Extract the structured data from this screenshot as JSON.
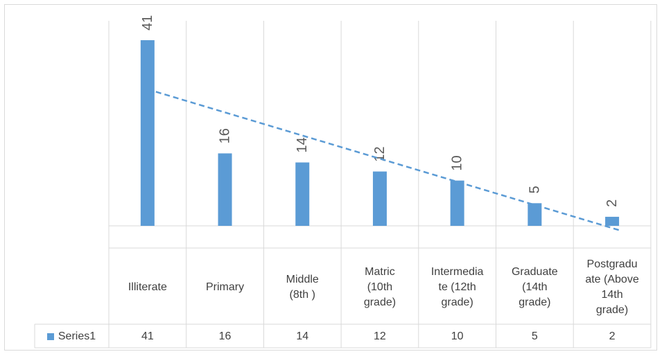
{
  "chart_data": {
    "type": "bar",
    "categories": [
      "Illiterate",
      "Primary",
      "Middle\n(8th )",
      "Matric\n(10th\ngrade)",
      "Intermedia\nte (12th\ngrade)",
      "Graduate\n(14th\ngrade)",
      "Postgradu\nate (Above\n14th\ngrade)"
    ],
    "series": [
      {
        "name": "Series1",
        "values": [
          41,
          16,
          14,
          12,
          10,
          5,
          2
        ]
      }
    ],
    "data_labels": [
      "41",
      "16",
      "14",
      "12",
      "10",
      "5",
      "2"
    ],
    "table_values": [
      "41",
      "16",
      "14",
      "12",
      "10",
      "5",
      "2"
    ],
    "trendline": {
      "type": "linear",
      "style": "dashed"
    },
    "ylim": [
      0,
      41
    ],
    "data_table": true,
    "gridlines": "vertical",
    "bar_color": "#5b9bd5",
    "grid_color": "#d9d9d9",
    "title": "",
    "xlabel": "",
    "ylabel": ""
  }
}
